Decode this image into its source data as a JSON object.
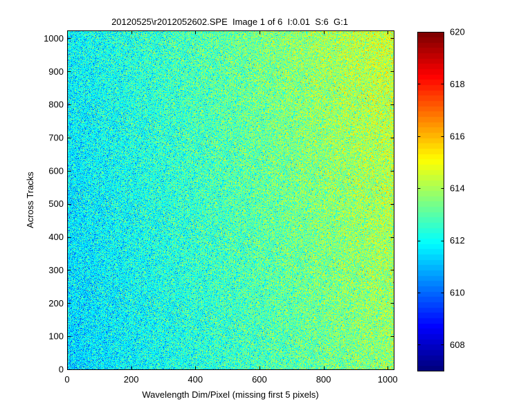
{
  "chart_data": {
    "type": "heatmap",
    "title": "20120525\\r2012052602.SPE  Image 1 of 6  I:0.01  S:6  G:1",
    "xlabel": "Wavelength Dim/Pixel (missing first 5 pixels)",
    "ylabel": "Across Tracks",
    "xlim": [
      0,
      1019
    ],
    "ylim": [
      0,
      1024
    ],
    "x_ticks": [
      "0",
      "200",
      "400",
      "600",
      "800",
      "1000"
    ],
    "y_ticks": [
      "0",
      "100",
      "200",
      "300",
      "400",
      "500",
      "600",
      "700",
      "800",
      "900",
      "1000"
    ],
    "colormap": "jet",
    "clim": [
      607,
      620
    ],
    "colorbar_ticks": [
      "608",
      "610",
      "612",
      "614",
      "616",
      "618",
      "620"
    ],
    "grid": false
  }
}
